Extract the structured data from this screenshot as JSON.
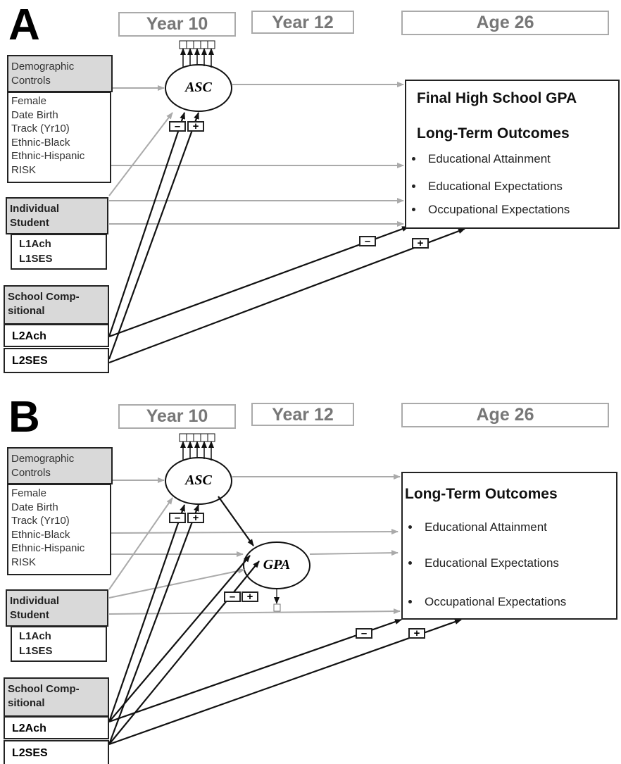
{
  "panels": [
    {
      "label": "A",
      "headers": [
        "Year 10",
        "Year 12",
        "Age 26"
      ],
      "demographic": {
        "title": [
          "Demographic",
          "Controls"
        ],
        "items": [
          "Female",
          "Date Birth",
          "Track (Yr10)",
          "Ethnic-Black",
          "Ethnic-Hispanic",
          "RISK"
        ]
      },
      "individual": {
        "title": [
          "Individual",
          "Student"
        ],
        "items": [
          "L1Ach",
          "L1SES"
        ]
      },
      "school": {
        "title": [
          "School Comp-",
          "sitional"
        ],
        "items": [
          "L2Ach",
          "L2SES"
        ]
      },
      "nodes": [
        "ASC"
      ],
      "outcomes": {
        "titles": [
          "Final High School GPA",
          "Long-Term Outcomes"
        ],
        "items": [
          "Educational Attainment",
          "Educational Expectations",
          "Occupational Expectations"
        ]
      },
      "signs": [
        [
          "–",
          "+"
        ],
        [
          "–",
          "+"
        ]
      ]
    },
    {
      "label": "B",
      "headers": [
        "Year 10",
        "Year 12",
        "Age 26"
      ],
      "demographic": {
        "title": [
          "Demographic",
          "Controls"
        ],
        "items": [
          "Female",
          "Date Birth",
          "Track (Yr10)",
          "Ethnic-Black",
          "Ethnic-Hispanic",
          "RISK"
        ]
      },
      "individual": {
        "title": [
          "Individual",
          "Student"
        ],
        "items": [
          "L1Ach",
          "L1SES"
        ]
      },
      "school": {
        "title": [
          "School Comp-",
          "sitional"
        ],
        "items": [
          "L2Ach",
          "L2SES"
        ]
      },
      "nodes": [
        "ASC",
        "GPA"
      ],
      "outcomes": {
        "titles": [
          "Long-Term Outcomes"
        ],
        "items": [
          "Educational Attainment",
          "Educational Expectations",
          "Occupational Expectations"
        ]
      },
      "signs": [
        [
          "–",
          "+"
        ],
        [
          "–",
          "+"
        ],
        [
          "–",
          "+"
        ]
      ]
    }
  ]
}
